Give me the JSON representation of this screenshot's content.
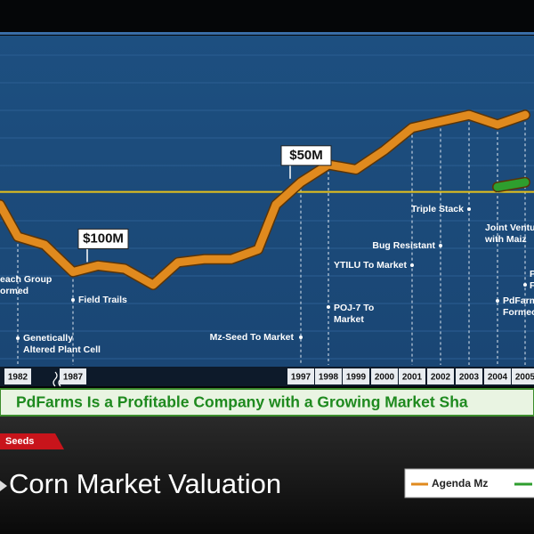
{
  "chart_data": {
    "type": "line",
    "title": "Corn Market Valuation",
    "tab": "Seeds",
    "banner": "PdFarms Is a Profitable Company with a Growing Market Sha",
    "categories": [
      null,
      "1982",
      null,
      "1987",
      null,
      null,
      null,
      null,
      null,
      null,
      null,
      null,
      "1997",
      "1998",
      "1999",
      "2000",
      "2001",
      "2002",
      "2003",
      "2004",
      "2005"
    ],
    "ylim": [
      0,
      100
    ],
    "series": [
      {
        "name": "Agenda Mz",
        "color": "#e08a1e",
        "values": [
          50,
          40,
          37.5,
          29,
          31,
          30,
          25,
          32,
          33,
          33,
          36,
          50,
          57,
          62.5,
          61,
          67,
          74,
          76,
          78,
          75,
          78
        ]
      },
      {
        "color": "#2e9e2e",
        "values": [
          null,
          null,
          null,
          null,
          null,
          null,
          null,
          null,
          null,
          null,
          null,
          null,
          null,
          null,
          null,
          null,
          null,
          null,
          null,
          55.5,
          57
        ]
      }
    ],
    "reference_line": {
      "value": 54,
      "color": "#e8c21a"
    },
    "value_callouts": [
      {
        "text": "$100M",
        "category": 4
      },
      {
        "text": "$50M",
        "category": 12
      }
    ],
    "annotations": [
      {
        "lines": [
          "each Group",
          "ormed"
        ]
      },
      {
        "lines": [
          "Genetically",
          "Altered Plant Cell"
        ]
      },
      {
        "lines": [
          "Field Trails"
        ]
      },
      {
        "lines": [
          "Mz-Seed To Market"
        ]
      },
      {
        "lines": [
          "POJ-7 To",
          "Market"
        ]
      },
      {
        "lines": [
          "YTILU To Market"
        ]
      },
      {
        "lines": [
          "Bug Resistant"
        ]
      },
      {
        "lines": [
          "Triple Stack"
        ]
      },
      {
        "lines": [
          "Joint Ventu",
          "with Maiz"
        ]
      },
      {
        "lines": [
          "PdFarm",
          "Formec"
        ]
      },
      {
        "lines": [
          "P",
          "F"
        ]
      }
    ]
  }
}
